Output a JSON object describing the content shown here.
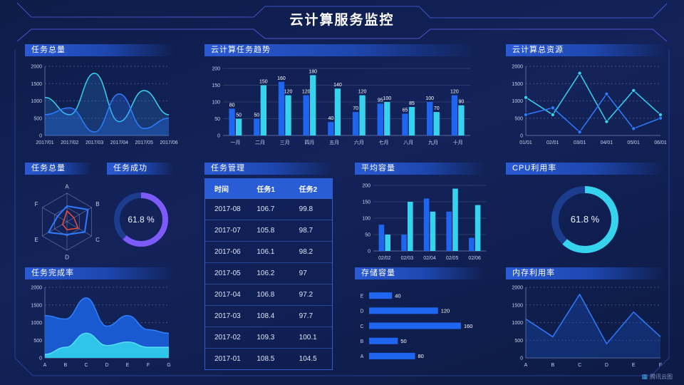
{
  "header": {
    "title": "云计算服务监控"
  },
  "watermark": {
    "label": "腾讯云图"
  },
  "colors": {
    "accent_blue": "#1e66f0",
    "accent_cyan": "#36d3ef",
    "accent_purple": "#7d5afa",
    "accent_red": "#ef4f38",
    "donut_track": "#1c3c8e",
    "background": "#101d48",
    "frame_line": "#3c55d0"
  },
  "panels": {
    "tasks_total_top": {
      "title": "任务总量"
    },
    "task_trend": {
      "title": "云计算任务趋势"
    },
    "total_resources": {
      "title": "云计算总资源"
    },
    "tasks_total_radar": {
      "title": "任务总量"
    },
    "task_success": {
      "title": "任务成功"
    },
    "task_management": {
      "title": "任务管理"
    },
    "avg_capacity": {
      "title": "平均容量"
    },
    "cpu_usage": {
      "title": "CPU利用率"
    },
    "completion_rate": {
      "title": "任务完成率"
    },
    "storage_capacity": {
      "title": "存储容量"
    },
    "memory_usage": {
      "title": "内存利用率"
    }
  },
  "table": {
    "columns": [
      "时间",
      "任务1",
      "任务2"
    ],
    "rows": [
      [
        "2017-08",
        "106.7",
        "99.8"
      ],
      [
        "2017-07",
        "105.8",
        "98.7"
      ],
      [
        "2017-06",
        "106.1",
        "98.2"
      ],
      [
        "2017-05",
        "106.2",
        "97"
      ],
      [
        "2017-04",
        "106.8",
        "97.2"
      ],
      [
        "2017-03",
        "108.4",
        "97.7"
      ],
      [
        "2017-02",
        "109.3",
        "100.1"
      ],
      [
        "2017-01",
        "108.5",
        "104.5"
      ]
    ]
  },
  "chart_data": [
    {
      "id": "tasks-total",
      "type": "area",
      "title": "任务总量",
      "smooth": true,
      "grid": "dashed",
      "x": [
        "2017/01",
        "2017/02",
        "2017/03",
        "2017/04",
        "2017/05",
        "2017/06"
      ],
      "ylim": [
        0,
        2000
      ],
      "yticks": [
        0,
        500,
        1000,
        1500,
        2000
      ],
      "series": [
        {
          "name": "series-1",
          "color": "#36d3ef",
          "fill": "#2f8cdc",
          "fill_opacity": 0.22,
          "values": [
            1100,
            600,
            1800,
            400,
            1300,
            600
          ]
        },
        {
          "name": "series-2",
          "color": "#2f7bff",
          "fill": "#2f7bff",
          "fill_opacity": 0.28,
          "values": [
            600,
            800,
            100,
            1200,
            200,
            500
          ]
        }
      ]
    },
    {
      "id": "task-trend",
      "type": "bar",
      "title": "云计算任务趋势",
      "bar_labels": true,
      "categories": [
        "一月",
        "二月",
        "三月",
        "四月",
        "五月",
        "六月",
        "七月",
        "八月",
        "九月",
        "十月"
      ],
      "ylim": [
        0,
        200
      ],
      "yticks": [
        0,
        50,
        100,
        150,
        200
      ],
      "series": [
        {
          "name": "任务1",
          "color": "#1e66f0",
          "values": [
            80,
            50,
            160,
            120,
            40,
            70,
            95,
            65,
            100,
            120
          ]
        },
        {
          "name": "任务2",
          "color": "#36d3ef",
          "values": [
            50,
            150,
            120,
            180,
            140,
            120,
            100,
            85,
            70,
            90
          ]
        }
      ]
    },
    {
      "id": "total-resources",
      "type": "line",
      "title": "云计算总资源",
      "smooth": false,
      "markers": true,
      "grid": "dashed",
      "x": [
        "01/01",
        "02/01",
        "03/01",
        "04/01",
        "05/01",
        "06/01"
      ],
      "ylim": [
        0,
        2000
      ],
      "yticks": [
        0,
        500,
        1000,
        1500,
        2000
      ],
      "series": [
        {
          "name": "series-1",
          "color": "#36d3ef",
          "values": [
            1100,
            600,
            1800,
            400,
            1300,
            600
          ]
        },
        {
          "name": "series-2",
          "color": "#2f7bff",
          "values": [
            600,
            800,
            100,
            1200,
            200,
            500
          ]
        }
      ]
    },
    {
      "id": "task-radar",
      "type": "radar",
      "title": "任务总量",
      "axes": [
        "A",
        "B",
        "C",
        "D",
        "E",
        "F"
      ],
      "max": 100,
      "series": [
        {
          "name": "series-blue",
          "color": "#2f7bff",
          "values": [
            55,
            85,
            72,
            45,
            75,
            38
          ]
        },
        {
          "name": "series-red",
          "color": "#ef4f38",
          "values": [
            38,
            28,
            45,
            28,
            18,
            12
          ]
        }
      ]
    },
    {
      "id": "task-success",
      "type": "donut",
      "title": "任务成功",
      "value": 61.8,
      "label": "61.8 %",
      "color": "#7d5afa",
      "track": "#1c3c8e"
    },
    {
      "id": "avg-capacity",
      "type": "bar",
      "title": "平均容量",
      "bar_labels": false,
      "categories": [
        "02/02",
        "02/03",
        "02/04",
        "02/05",
        "02/06"
      ],
      "ylim": [
        0,
        200
      ],
      "yticks": [
        0,
        50,
        100,
        150,
        200
      ],
      "series": [
        {
          "name": "series-1",
          "color": "#1e66f0",
          "values": [
            80,
            50,
            160,
            120,
            40
          ]
        },
        {
          "name": "series-2",
          "color": "#36d3ef",
          "values": [
            50,
            150,
            120,
            190,
            140
          ]
        }
      ]
    },
    {
      "id": "cpu-usage",
      "type": "donut",
      "title": "CPU利用率",
      "value": 61.8,
      "label": "61.8 %",
      "color": "#36d3ef",
      "track": "#1c3c8e"
    },
    {
      "id": "completion-rate",
      "type": "area",
      "title": "任务完成率",
      "smooth": true,
      "grid": "dashed",
      "x": [
        "A",
        "B",
        "C",
        "D",
        "E",
        "F",
        "G"
      ],
      "ylim": [
        0,
        2000
      ],
      "yticks": [
        0,
        500,
        1000,
        1500,
        2000
      ],
      "series": [
        {
          "name": "series-blue",
          "color": "#2f82ff",
          "fill": "#1a5ed8",
          "fill_opacity": 0.95,
          "values": [
            1200,
            1100,
            1700,
            900,
            1200,
            800,
            700
          ]
        },
        {
          "name": "series-cyan",
          "color": "#55e0f8",
          "fill": "#2fc4ea",
          "fill_opacity": 1,
          "values": [
            100,
            300,
            700,
            350,
            450,
            300,
            300
          ]
        }
      ]
    },
    {
      "id": "storage-capacity",
      "type": "hbar",
      "title": "存储容量",
      "bar_labels": true,
      "categories": [
        "E",
        "D",
        "C",
        "B",
        "A"
      ],
      "values": [
        40,
        120,
        160,
        50,
        80
      ],
      "xmax": 170,
      "color": "#1e66f0"
    },
    {
      "id": "memory-usage",
      "type": "line",
      "title": "内存利用率",
      "smooth": false,
      "grid": "dashed",
      "x": [
        "A",
        "B",
        "C",
        "D",
        "E",
        "F"
      ],
      "ylim": [
        0,
        2000
      ],
      "yticks": [
        0,
        500,
        1000,
        1500,
        2000
      ],
      "series": [
        {
          "name": "series-1",
          "color": "#2f7bff",
          "fill": "#1e5ad0",
          "fill_opacity": 0.3,
          "values": [
            1100,
            600,
            1800,
            400,
            1300,
            600
          ]
        }
      ]
    }
  ]
}
